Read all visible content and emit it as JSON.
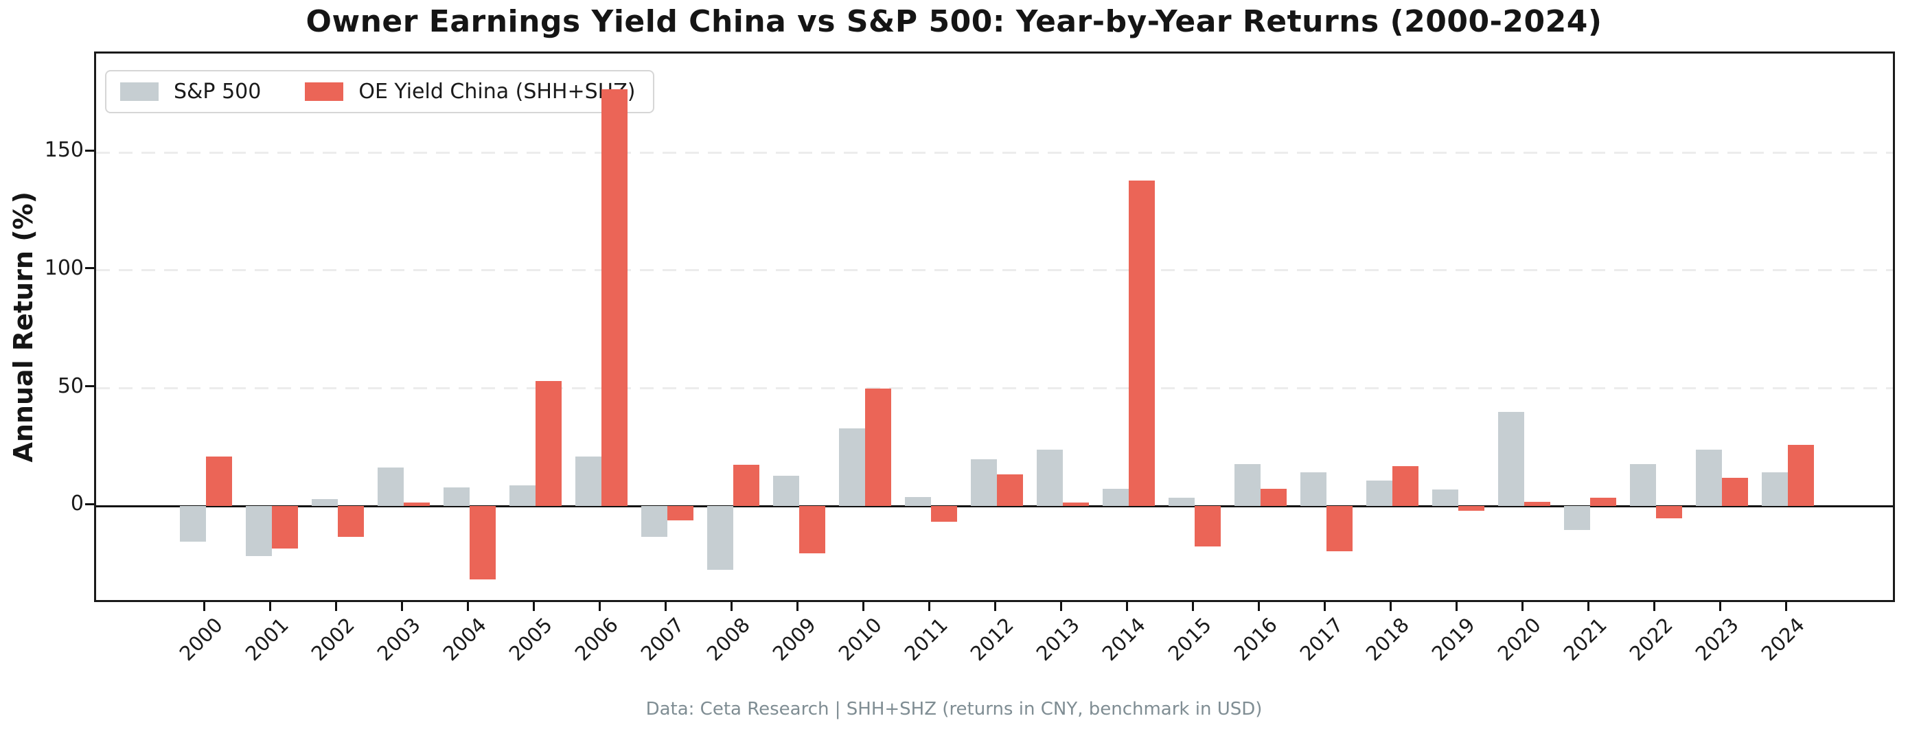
{
  "title": "Owner Earnings Yield China vs S&P 500: Year-by-Year Returns (2000-2024)",
  "footer": "Data: Ceta Research | SHH+SHZ (returns in CNY, benchmark in USD)",
  "ylabel": "Annual Return (%)",
  "colors": {
    "sp500": "#c6ced2",
    "oe_china": "#eb6557",
    "spine": "#1a1a1a",
    "grid": "#ececec",
    "zero_line": "#111111",
    "footer_text": "#7f8d93"
  },
  "chart_data": {
    "type": "bar",
    "title": "Owner Earnings Yield China vs S&P 500: Year-by-Year Returns (2000-2024)",
    "xlabel": "",
    "ylabel": "Annual Return (%)",
    "categories": [
      "2000",
      "2001",
      "2002",
      "2003",
      "2004",
      "2005",
      "2006",
      "2007",
      "2008",
      "2009",
      "2010",
      "2011",
      "2012",
      "2013",
      "2014",
      "2015",
      "2016",
      "2017",
      "2018",
      "2019",
      "2020",
      "2021",
      "2022",
      "2023",
      "2024"
    ],
    "series": [
      {
        "name": "S&P 500",
        "color": "#c6ced2",
        "values": [
          -15,
          -21,
          3,
          16.5,
          8,
          9,
          21,
          -13,
          -27,
          13,
          33,
          4,
          20,
          24,
          7.5,
          3.5,
          18,
          14.5,
          11,
          7,
          40,
          -10,
          18,
          24,
          14.5
        ]
      },
      {
        "name": "OE Yield China (SHH+SHZ)",
        "color": "#eb6557",
        "values": [
          21,
          -18,
          -13,
          1.5,
          -31,
          53,
          177,
          -6,
          17.5,
          -20,
          50,
          -6.5,
          13.5,
          1.5,
          138,
          -17,
          7.5,
          -19,
          17,
          -2,
          2,
          3.5,
          -5,
          12,
          26
        ]
      }
    ],
    "yticks": [
      0,
      50,
      100,
      150
    ],
    "ylim": [
      -41.5,
      192
    ],
    "grid": "horizontal dashed at yticks",
    "zero_line": true,
    "legend_position": "upper-left",
    "footer": "Data: Ceta Research | SHH+SHZ (returns in CNY, benchmark in USD)"
  }
}
